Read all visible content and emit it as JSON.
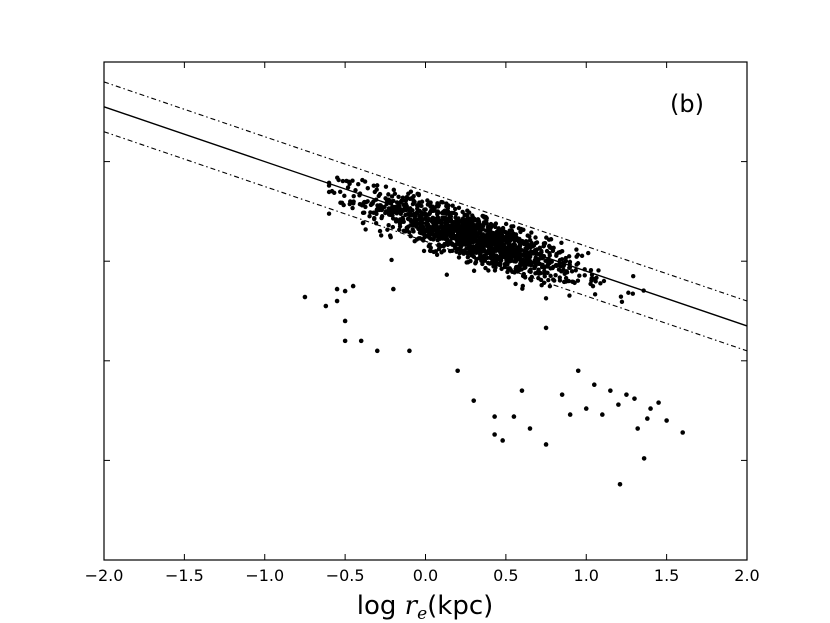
{
  "chart_data": {
    "type": "scatter",
    "panel_label": "(b)",
    "xlabel": {
      "prefix": "log ",
      "var": "r",
      "sub": "e",
      "suffix": "(kpc)"
    },
    "xlim": [
      -2.0,
      2.0
    ],
    "ylim": [
      0,
      5
    ],
    "x_ticks": [
      -2.0,
      -1.5,
      -1.0,
      -0.5,
      0.0,
      0.5,
      1.0,
      1.5,
      2.0
    ],
    "x_tick_labels": [
      "−2.0",
      "−1.5",
      "−1.0",
      "−0.5",
      "0.0",
      "0.5",
      "1.0",
      "1.5",
      "2.0"
    ],
    "y_ticks": [
      1,
      2,
      3,
      4
    ],
    "y_tick_labels": [],
    "grid": false,
    "fit_line": {
      "slope": -0.55,
      "intercept": 3.45,
      "style": "solid"
    },
    "bounds": [
      {
        "slope": -0.55,
        "intercept": 3.7,
        "style": "dashdot"
      },
      {
        "slope": -0.55,
        "intercept": 3.2,
        "style": "dashdot"
      }
    ],
    "cloud": {
      "x_mean": 0.3,
      "x_sd": 0.33,
      "resid_mean": -0.05,
      "resid_sd": 0.12,
      "count": 1400
    },
    "points": [
      [
        -0.75,
        2.64
      ],
      [
        -0.62,
        2.55
      ],
      [
        -0.55,
        2.6
      ],
      [
        -0.55,
        2.72
      ],
      [
        -0.5,
        2.7
      ],
      [
        -0.45,
        2.75
      ],
      [
        -0.2,
        2.72
      ],
      [
        -0.5,
        2.4
      ],
      [
        -0.5,
        2.2
      ],
      [
        -0.4,
        2.2
      ],
      [
        -0.3,
        2.1
      ],
      [
        -0.1,
        2.1
      ],
      [
        0.3,
        1.6
      ],
      [
        0.43,
        1.26
      ],
      [
        0.43,
        1.44
      ],
      [
        0.48,
        1.2
      ],
      [
        0.55,
        1.44
      ],
      [
        0.65,
        1.32
      ],
      [
        0.75,
        1.16
      ],
      [
        0.6,
        1.7
      ],
      [
        0.85,
        1.66
      ],
      [
        0.9,
        1.46
      ],
      [
        1.0,
        1.52
      ],
      [
        1.1,
        1.46
      ],
      [
        1.21,
        0.76
      ],
      [
        1.32,
        1.32
      ],
      [
        1.36,
        1.02
      ],
      [
        1.4,
        1.52
      ],
      [
        1.45,
        1.58
      ],
      [
        1.5,
        1.4
      ],
      [
        1.6,
        1.28
      ],
      [
        0.75,
        2.33
      ],
      [
        1.3,
        1.62
      ],
      [
        1.25,
        1.66
      ],
      [
        0.95,
        1.9
      ],
      [
        1.05,
        1.76
      ],
      [
        1.15,
        1.7
      ],
      [
        1.2,
        1.56
      ],
      [
        1.38,
        1.42
      ],
      [
        0.2,
        1.9
      ]
    ]
  }
}
